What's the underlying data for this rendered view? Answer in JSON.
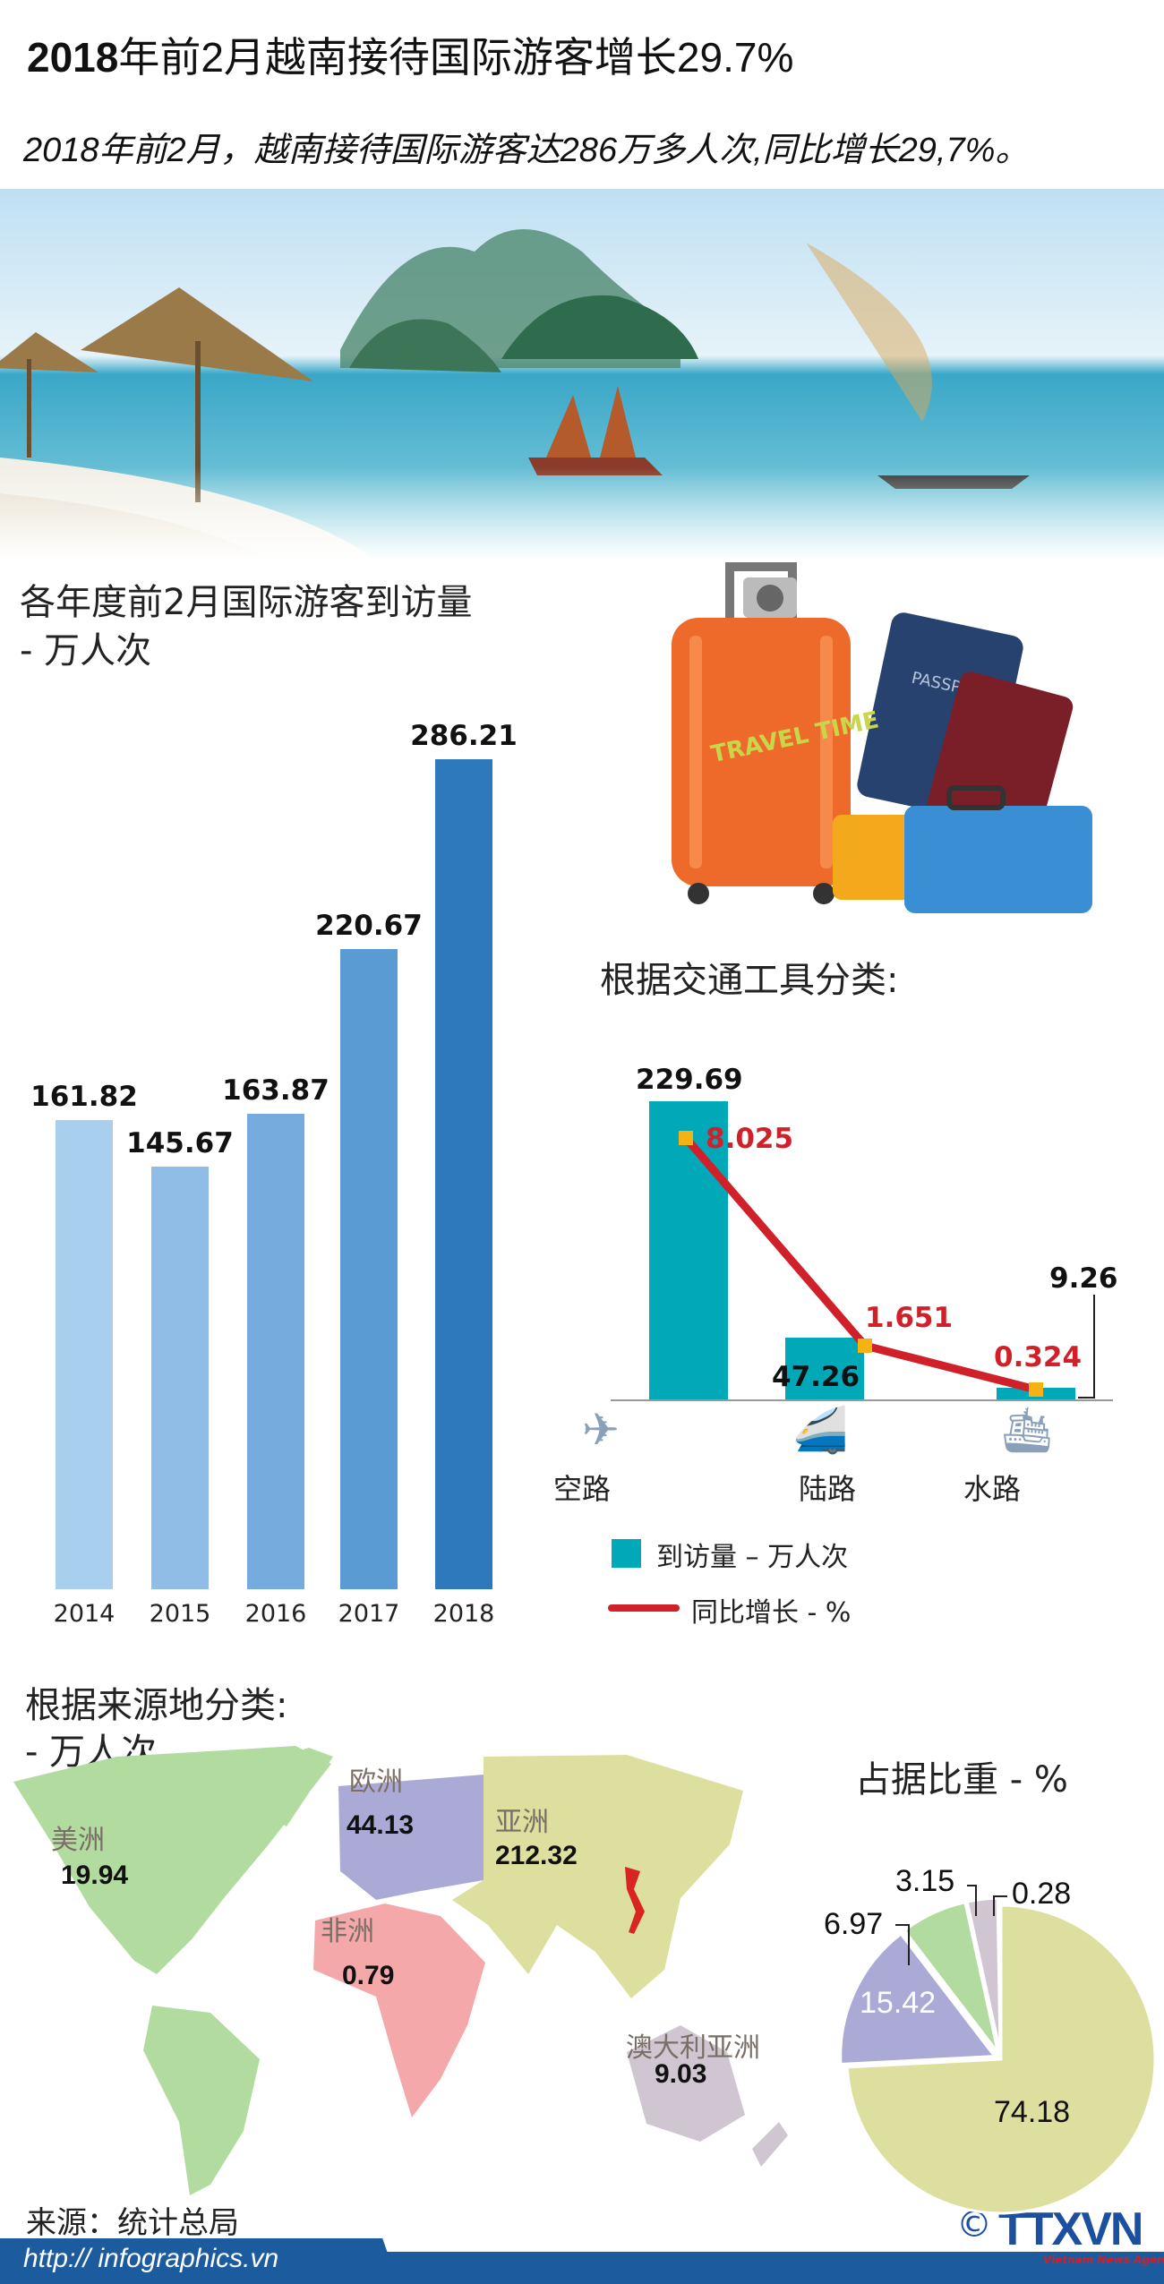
{
  "header": {
    "title_bold": "2018",
    "title_rest": "年前2月越南接待国际游客增长29.7%",
    "subtitle": "2018年前2月，越南接待国际游客达286万多人次,同比增长29,7%。"
  },
  "chart_data": [
    {
      "type": "bar",
      "title": "各年度前2月国际游客到访量",
      "ylabel": "- 万人次",
      "categories": [
        "2014",
        "2015",
        "2016",
        "2017",
        "2018"
      ],
      "values": [
        161.82,
        145.67,
        163.87,
        220.67,
        286.21
      ],
      "value_labels": [
        "161.82",
        "145.67",
        "163.87",
        "220.67",
        "286.21"
      ],
      "colors": [
        "#a8cfee",
        "#8fbde6",
        "#75acdd",
        "#5b9bd4",
        "#2e79bb"
      ]
    },
    {
      "type": "bar+line",
      "title": "根据交通工具分类:",
      "categories": [
        "空路",
        "陆路",
        "水路"
      ],
      "series": [
        {
          "name": "到访量 – 万人次",
          "type": "bar",
          "values": [
            229.69,
            47.26,
            9.26
          ],
          "labels": [
            "229.69",
            "47.26",
            "9.26"
          ],
          "color": "#00a8b8"
        },
        {
          "name": "同比增长 - %",
          "type": "line",
          "values": [
            8.025,
            1.651,
            0.324
          ],
          "labels": [
            "8.025",
            "1.651",
            "0.324"
          ],
          "color": "#d0202a"
        }
      ],
      "icons": [
        "airplane-icon",
        "train-icon",
        "cruise-ship-icon"
      ]
    },
    {
      "type": "map",
      "title": "根据来源地分类:",
      "unit": "- 万人次",
      "regions": [
        {
          "name": "美洲",
          "value": "19.94",
          "color": "#b2dba0"
        },
        {
          "name": "欧洲",
          "value": "44.13",
          "color": "#abaad6"
        },
        {
          "name": "亚洲",
          "value": "212.32",
          "color": "#dcdf9e"
        },
        {
          "name": "非洲",
          "value": "0.79",
          "color": "#f4a8aa"
        },
        {
          "name": "澳大利亚洲",
          "value": "9.03",
          "color": "#cfc6d2"
        }
      ]
    },
    {
      "type": "pie",
      "title": "占据比重 - %",
      "values": [
        74.18,
        15.42,
        6.97,
        3.15,
        0.28
      ],
      "labels": [
        "74.18",
        "15.42",
        "6.97",
        "3.15",
        "0.28"
      ],
      "colors": [
        "#dcdf9e",
        "#abaad6",
        "#b2dba0",
        "#cfc6d2",
        "#f4a8aa"
      ]
    }
  ],
  "footer": {
    "source": "来源：统计总局",
    "url": "http:// infographics.vn",
    "logo": "TTXVN",
    "logo_sub": "Vietnam News Agency",
    "copyright": "©"
  }
}
